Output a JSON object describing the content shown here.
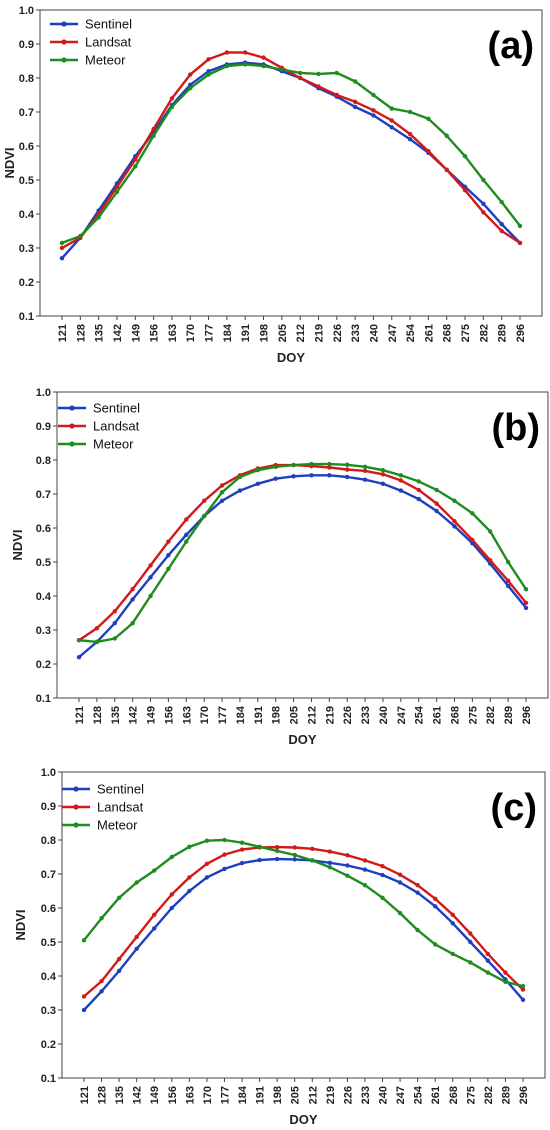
{
  "chart_data": [
    {
      "type": "line",
      "panel_label": "(a)",
      "xlabel": "DOY",
      "ylabel": "NDVI",
      "ylim": [
        0.1,
        1.0
      ],
      "yticks": [
        "0.1",
        "0.2",
        "0.3",
        "0.4",
        "0.5",
        "0.6",
        "0.7",
        "0.8",
        "0.9",
        "1.0"
      ],
      "categories": [
        "121",
        "128",
        "135",
        "142",
        "149",
        "156",
        "163",
        "170",
        "177",
        "184",
        "191",
        "198",
        "205",
        "212",
        "219",
        "226",
        "233",
        "240",
        "247",
        "254",
        "261",
        "268",
        "275",
        "282",
        "289",
        "296"
      ],
      "grid": false,
      "legend_position": "top-left",
      "series": [
        {
          "name": "Sentinel",
          "color": "#1f3fbf",
          "values": [
            0.27,
            0.33,
            0.41,
            0.49,
            0.57,
            0.64,
            0.72,
            0.78,
            0.82,
            0.84,
            0.845,
            0.84,
            0.82,
            0.8,
            0.77,
            0.745,
            0.715,
            0.69,
            0.655,
            0.62,
            0.58,
            0.53,
            0.48,
            0.43,
            0.37,
            0.315
          ]
        },
        {
          "name": "Landsat",
          "color": "#d11a1a",
          "values": [
            0.3,
            0.33,
            0.4,
            0.48,
            0.56,
            0.65,
            0.74,
            0.81,
            0.855,
            0.875,
            0.875,
            0.86,
            0.83,
            0.8,
            0.775,
            0.75,
            0.73,
            0.705,
            0.675,
            0.635,
            0.585,
            0.53,
            0.47,
            0.405,
            0.35,
            0.315
          ]
        },
        {
          "name": "Meteor",
          "color": "#1f8c1f",
          "values": [
            0.315,
            0.335,
            0.39,
            0.465,
            0.54,
            0.63,
            0.715,
            0.77,
            0.81,
            0.835,
            0.84,
            0.835,
            0.825,
            0.815,
            0.812,
            0.815,
            0.79,
            0.75,
            0.71,
            0.7,
            0.68,
            0.63,
            0.57,
            0.5,
            0.435,
            0.365
          ]
        }
      ]
    },
    {
      "type": "line",
      "panel_label": "(b)",
      "xlabel": "DOY",
      "ylabel": "NDVI",
      "ylim": [
        0.1,
        1.0
      ],
      "yticks": [
        "0.1",
        "0.2",
        "0.3",
        "0.4",
        "0.5",
        "0.6",
        "0.7",
        "0.8",
        "0.9",
        "1.0"
      ],
      "categories": [
        "121",
        "128",
        "135",
        "142",
        "149",
        "156",
        "163",
        "170",
        "177",
        "184",
        "191",
        "198",
        "205",
        "212",
        "219",
        "226",
        "233",
        "240",
        "247",
        "254",
        "261",
        "268",
        "275",
        "282",
        "289",
        "296"
      ],
      "grid": false,
      "legend_position": "top-left",
      "series": [
        {
          "name": "Sentinel",
          "color": "#1f3fbf",
          "values": [
            0.22,
            0.265,
            0.32,
            0.39,
            0.455,
            0.52,
            0.58,
            0.635,
            0.68,
            0.71,
            0.73,
            0.745,
            0.752,
            0.755,
            0.755,
            0.75,
            0.742,
            0.73,
            0.71,
            0.685,
            0.65,
            0.605,
            0.555,
            0.495,
            0.43,
            0.365
          ]
        },
        {
          "name": "Landsat",
          "color": "#d11a1a",
          "values": [
            0.27,
            0.305,
            0.355,
            0.42,
            0.49,
            0.56,
            0.625,
            0.68,
            0.725,
            0.755,
            0.775,
            0.785,
            0.785,
            0.782,
            0.778,
            0.772,
            0.768,
            0.758,
            0.74,
            0.712,
            0.672,
            0.62,
            0.565,
            0.505,
            0.445,
            0.38
          ]
        },
        {
          "name": "Meteor",
          "color": "#1f8c1f",
          "values": [
            0.27,
            0.265,
            0.275,
            0.32,
            0.4,
            0.48,
            0.56,
            0.635,
            0.705,
            0.75,
            0.77,
            0.78,
            0.785,
            0.788,
            0.788,
            0.786,
            0.78,
            0.77,
            0.755,
            0.737,
            0.712,
            0.68,
            0.643,
            0.59,
            0.5,
            0.42
          ]
        }
      ]
    },
    {
      "type": "line",
      "panel_label": "(c)",
      "xlabel": "DOY",
      "ylabel": "NDVI",
      "ylim": [
        0.1,
        1.0
      ],
      "yticks": [
        "0.1",
        "0.2",
        "0.3",
        "0.4",
        "0.5",
        "0.6",
        "0.7",
        "0.8",
        "0.9",
        "1.0"
      ],
      "categories": [
        "121",
        "128",
        "135",
        "142",
        "149",
        "156",
        "163",
        "170",
        "177",
        "184",
        "191",
        "198",
        "205",
        "212",
        "219",
        "226",
        "233",
        "240",
        "247",
        "254",
        "261",
        "268",
        "275",
        "282",
        "289",
        "296"
      ],
      "grid": false,
      "legend_position": "top-left",
      "series": [
        {
          "name": "Sentinel",
          "color": "#1f3fbf",
          "values": [
            0.3,
            0.355,
            0.415,
            0.48,
            0.54,
            0.6,
            0.65,
            0.69,
            0.715,
            0.732,
            0.741,
            0.744,
            0.743,
            0.74,
            0.733,
            0.725,
            0.713,
            0.697,
            0.675,
            0.645,
            0.605,
            0.555,
            0.5,
            0.445,
            0.39,
            0.33
          ]
        },
        {
          "name": "Landsat",
          "color": "#d11a1a",
          "values": [
            0.34,
            0.385,
            0.45,
            0.515,
            0.58,
            0.64,
            0.69,
            0.73,
            0.757,
            0.772,
            0.778,
            0.779,
            0.778,
            0.774,
            0.766,
            0.755,
            0.74,
            0.723,
            0.698,
            0.667,
            0.627,
            0.58,
            0.525,
            0.465,
            0.41,
            0.36
          ]
        },
        {
          "name": "Meteor",
          "color": "#1f8c1f",
          "values": [
            0.505,
            0.57,
            0.63,
            0.675,
            0.71,
            0.75,
            0.78,
            0.798,
            0.8,
            0.792,
            0.78,
            0.768,
            0.756,
            0.74,
            0.72,
            0.695,
            0.667,
            0.63,
            0.585,
            0.535,
            0.493,
            0.465,
            0.44,
            0.41,
            0.383,
            0.37
          ]
        }
      ]
    }
  ]
}
